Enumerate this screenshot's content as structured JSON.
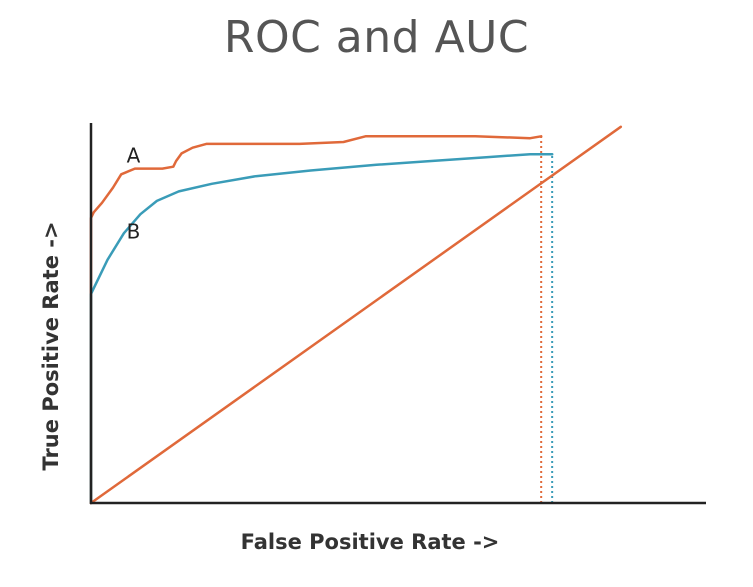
{
  "title": "ROC and AUC",
  "colors": {
    "curve_a": "#e0693a",
    "curve_b": "#3a9cb8",
    "diagonal": "#e0693a",
    "axis": "#222222"
  },
  "chart_data": {
    "type": "line",
    "title": "ROC and AUC",
    "xlabel": "False Positive Rate ->",
    "ylabel": "True Positive Rate ->",
    "xlim": [
      0,
      1
    ],
    "ylim": [
      0,
      1
    ],
    "grid": false,
    "tick_labels": false,
    "series": [
      {
        "name": "A",
        "color": "#e0693a",
        "x": [
          0,
          0.0,
          0.005,
          0.02,
          0.04,
          0.055,
          0.08,
          0.105,
          0.13,
          0.15,
          0.155,
          0.165,
          0.185,
          0.21,
          0.25,
          0.3,
          0.38,
          0.46,
          0.5,
          0.58,
          0.7,
          0.8,
          0.82
        ],
        "y": [
          0,
          0.75,
          0.765,
          0.79,
          0.83,
          0.865,
          0.88,
          0.88,
          0.88,
          0.885,
          0.9,
          0.92,
          0.935,
          0.945,
          0.945,
          0.945,
          0.945,
          0.95,
          0.965,
          0.965,
          0.965,
          0.96,
          0.965
        ]
      },
      {
        "name": "B",
        "color": "#3a9cb8",
        "x": [
          0,
          0.0,
          0.005,
          0.03,
          0.06,
          0.09,
          0.12,
          0.16,
          0.22,
          0.3,
          0.4,
          0.52,
          0.62,
          0.72,
          0.8,
          0.84
        ],
        "y": [
          0,
          0.55,
          0.565,
          0.64,
          0.71,
          0.76,
          0.795,
          0.82,
          0.84,
          0.86,
          0.875,
          0.89,
          0.9,
          0.91,
          0.918,
          0.918
        ]
      },
      {
        "name": "",
        "color": "#e0693a",
        "x": [
          0,
          0.965
        ],
        "y": [
          0,
          0.99
        ]
      }
    ],
    "annotations": [
      {
        "text": "A",
        "x": 0.065,
        "y": 0.91
      },
      {
        "text": "B",
        "x": 0.065,
        "y": 0.71
      }
    ],
    "dotted_verticals": [
      {
        "color": "#e0693a",
        "x": 0.82,
        "from_y": 0,
        "to_y": 0.965
      },
      {
        "color": "#3a9cb8",
        "x": 0.84,
        "from_y": 0,
        "to_y": 0.918
      }
    ]
  }
}
